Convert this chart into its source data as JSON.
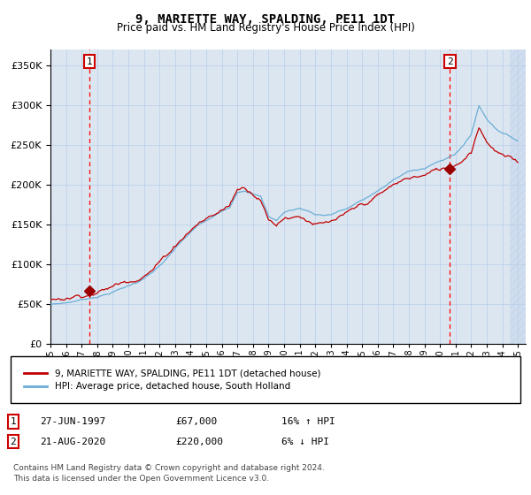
{
  "title": "9, MARIETTE WAY, SPALDING, PE11 1DT",
  "subtitle": "Price paid vs. HM Land Registry's House Price Index (HPI)",
  "ylim": [
    0,
    370000
  ],
  "yticks": [
    0,
    50000,
    100000,
    150000,
    200000,
    250000,
    300000,
    350000
  ],
  "sale1_x": 1997.49,
  "sale1_price": 67000,
  "sale2_x": 2020.64,
  "sale2_price": 220000,
  "legend_line1": "9, MARIETTE WAY, SPALDING, PE11 1DT (detached house)",
  "legend_line2": "HPI: Average price, detached house, South Holland",
  "ann1_num": "1",
  "ann1_date": "27-JUN-1997",
  "ann1_price": "£67,000",
  "ann1_hpi": "16% ↑ HPI",
  "ann2_num": "2",
  "ann2_date": "21-AUG-2020",
  "ann2_price": "£220,000",
  "ann2_hpi": "6% ↓ HPI",
  "footer": "Contains HM Land Registry data © Crown copyright and database right 2024.\nThis data is licensed under the Open Government Licence v3.0.",
  "hpi_color": "#6aaed6",
  "price_color": "#c00000",
  "background_color": "#dce6f1",
  "vline_color": "#ff0000",
  "marker_color": "#9b0000",
  "hatch_start": 2024.5,
  "xmin": 1995.0,
  "xmax": 2025.5
}
